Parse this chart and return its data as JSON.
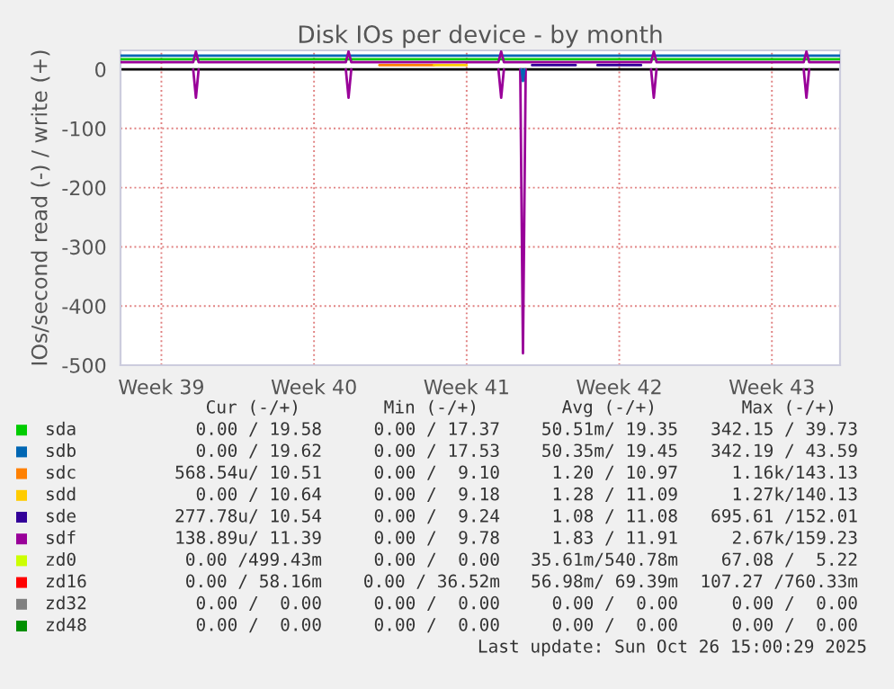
{
  "chart_data": {
    "type": "line",
    "title": "Disk IOs per device - by month",
    "ylabel": "IOs/second read (-) / write (+)",
    "xlim": [
      "2025-09-23T15:00",
      "2025-10-26T15:00"
    ],
    "xticks": [
      {
        "value": "2025-09-25T12:00",
        "label": "Week 39"
      },
      {
        "value": "2025-10-02T12:00",
        "label": "Week 40"
      },
      {
        "value": "2025-10-09T12:00",
        "label": "Week 41"
      },
      {
        "value": "2025-10-16T12:00",
        "label": "Week 42"
      },
      {
        "value": "2025-10-23T12:00",
        "label": "Week 43"
      }
    ],
    "ylim": [
      -500,
      32
    ],
    "yticks": [
      -500,
      -400,
      -300,
      -200,
      -100,
      0
    ],
    "grid": true,
    "legend": "bottom",
    "ref_lines": [
      {
        "axis": "y",
        "value": 0,
        "color": "#000000"
      }
    ],
    "series": [
      {
        "name": "sda",
        "color": "#00cc00",
        "x": [
          "2025-09-23T15:00",
          "2025-10-26T15:00"
        ],
        "values": [
          17,
          17
        ]
      },
      {
        "name": "sdb",
        "color": "#0066b3",
        "x": [
          "2025-09-23T15:00",
          "2025-10-26T15:00"
        ],
        "values": [
          23,
          23
        ]
      },
      {
        "name": "sdc",
        "color": "#ff8000",
        "x": [
          "2025-10-05T12:00",
          "2025-10-08T00:00"
        ],
        "values": [
          7,
          7
        ]
      },
      {
        "name": "sdd",
        "color": "#ffcc00",
        "x": [
          "2025-10-08T00:00",
          "2025-10-09T12:00"
        ],
        "values": [
          7,
          7
        ]
      },
      {
        "name": "sde",
        "color": "#330099",
        "x": [
          "2025-10-12T12:00",
          "2025-10-14T12:00",
          "2025-10-15T00:00",
          "2025-10-15T12:00",
          "2025-10-17T12:00"
        ],
        "values": [
          7,
          7,
          null,
          7,
          7
        ]
      },
      {
        "name": "sdf",
        "color": "#990099",
        "x": [
          "2025-09-23T15:00",
          "2025-09-26T23:00",
          "2025-09-27T02:00",
          "2025-09-27T05:00",
          "2025-10-03T23:00",
          "2025-10-04T02:00",
          "2025-10-04T05:00",
          "2025-10-10T23:00",
          "2025-10-11T02:00",
          "2025-10-11T05:00",
          "2025-10-17T23:00",
          "2025-10-18T02:00",
          "2025-10-18T05:00",
          "2025-10-24T23:00",
          "2025-10-25T02:00",
          "2025-10-25T05:00",
          "2025-10-26T15:00"
        ],
        "values": [
          12,
          12,
          30,
          12,
          12,
          30,
          12,
          12,
          30,
          12,
          12,
          30,
          12,
          12,
          30,
          12,
          12
        ]
      },
      {
        "name": "zd0",
        "color": "#ccff00"
      },
      {
        "name": "zd16",
        "color": "#ff0000"
      },
      {
        "name": "zd32",
        "color": "#808080"
      },
      {
        "name": "zd48",
        "color": "#008f00"
      },
      {
        "color": "#990099",
        "x": [
          "2025-09-26T23:00",
          "2025-09-27T02:00",
          "2025-09-27T05:00",
          "2025-09-27T06:00",
          "2025-10-03T23:00",
          "2025-10-04T02:00",
          "2025-10-04T05:00",
          "2025-10-04T06:00",
          "2025-10-10T23:00",
          "2025-10-11T02:00",
          "2025-10-11T05:00",
          "2025-10-11T06:00",
          "2025-10-11T23:00",
          "2025-10-12T02:00",
          "2025-10-12T05:00",
          "2025-10-12T06:00",
          "2025-10-17T23:00",
          "2025-10-18T02:00",
          "2025-10-18T05:00",
          "2025-10-18T06:00",
          "2025-10-24T23:00",
          "2025-10-25T02:00",
          "2025-10-25T05:00"
        ],
        "values": [
          0,
          -48,
          0,
          null,
          0,
          -48,
          0,
          null,
          0,
          -48,
          0,
          null,
          0,
          -480,
          0,
          null,
          0,
          -48,
          0,
          null,
          0,
          -48,
          0
        ]
      },
      {
        "color": "#0066b3",
        "x": [
          "2025-10-12T00:30",
          "2025-10-12T02:00",
          "2025-10-12T03:30"
        ],
        "values": [
          0,
          -20,
          0
        ]
      }
    ],
    "annotations": [
      "Cur (-/+)",
      "Min (-/+)",
      "Avg (-/+)",
      "Max (-/+)",
      "0.00 / 19.58",
      "0.00 / 17.37",
      "50.51m/ 19.35",
      "342.15 / 39.73",
      "0.00 / 19.62",
      "0.00 / 17.53",
      "50.35m/ 19.45",
      "342.19 / 43.59",
      "568.54u/ 10.51",
      "0.00 /  9.10",
      "1.20 / 10.97",
      "1.16k/143.13",
      "0.00 / 10.64",
      "0.00 /  9.18",
      "1.28 / 11.09",
      "1.27k/140.13",
      "277.78u/ 10.54",
      "0.00 /  9.24",
      "1.08 / 11.08",
      "695.61 /152.01",
      "138.89u/ 11.39",
      "0.00 /  9.78",
      "1.83 / 11.91",
      "2.67k/159.23",
      "0.00 /499.43m",
      "0.00 /  0.00",
      "35.61m/540.78m",
      "67.08 /  5.22",
      "0.00 / 58.16m",
      "0.00 / 36.52m",
      "56.98m/ 69.39m",
      "107.27 /760.33m",
      "0.00 /  0.00",
      "0.00 /  0.00",
      "0.00 /  0.00",
      "0.00 /  0.00",
      "0.00 /  0.00",
      "0.00 /  0.00",
      "0.00 /  0.00",
      "0.00 /  0.00",
      "Last update: Sun Oct 26 15:00:29 2025"
    ]
  }
}
